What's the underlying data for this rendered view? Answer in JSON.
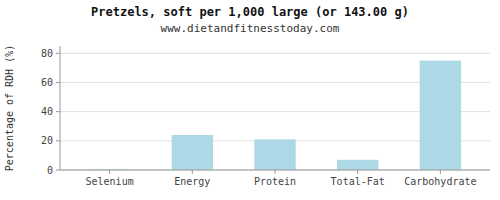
{
  "chart_data": {
    "type": "bar",
    "title": "Pretzels, soft per 1,000 large (or 143.00 g)",
    "subtitle": "www.dietandfitnesstoday.com",
    "categories": [
      "Selenium",
      "Energy",
      "Protein",
      "Total-Fat",
      "Carbohydrate"
    ],
    "values": [
      0.5,
      24,
      21,
      7,
      75
    ],
    "color": "#add8e6",
    "ylabel": "Percentage of RDH (%)",
    "ylim": [
      0,
      85
    ],
    "yticks": [
      0,
      20,
      40,
      60,
      80
    ],
    "grid": true
  }
}
